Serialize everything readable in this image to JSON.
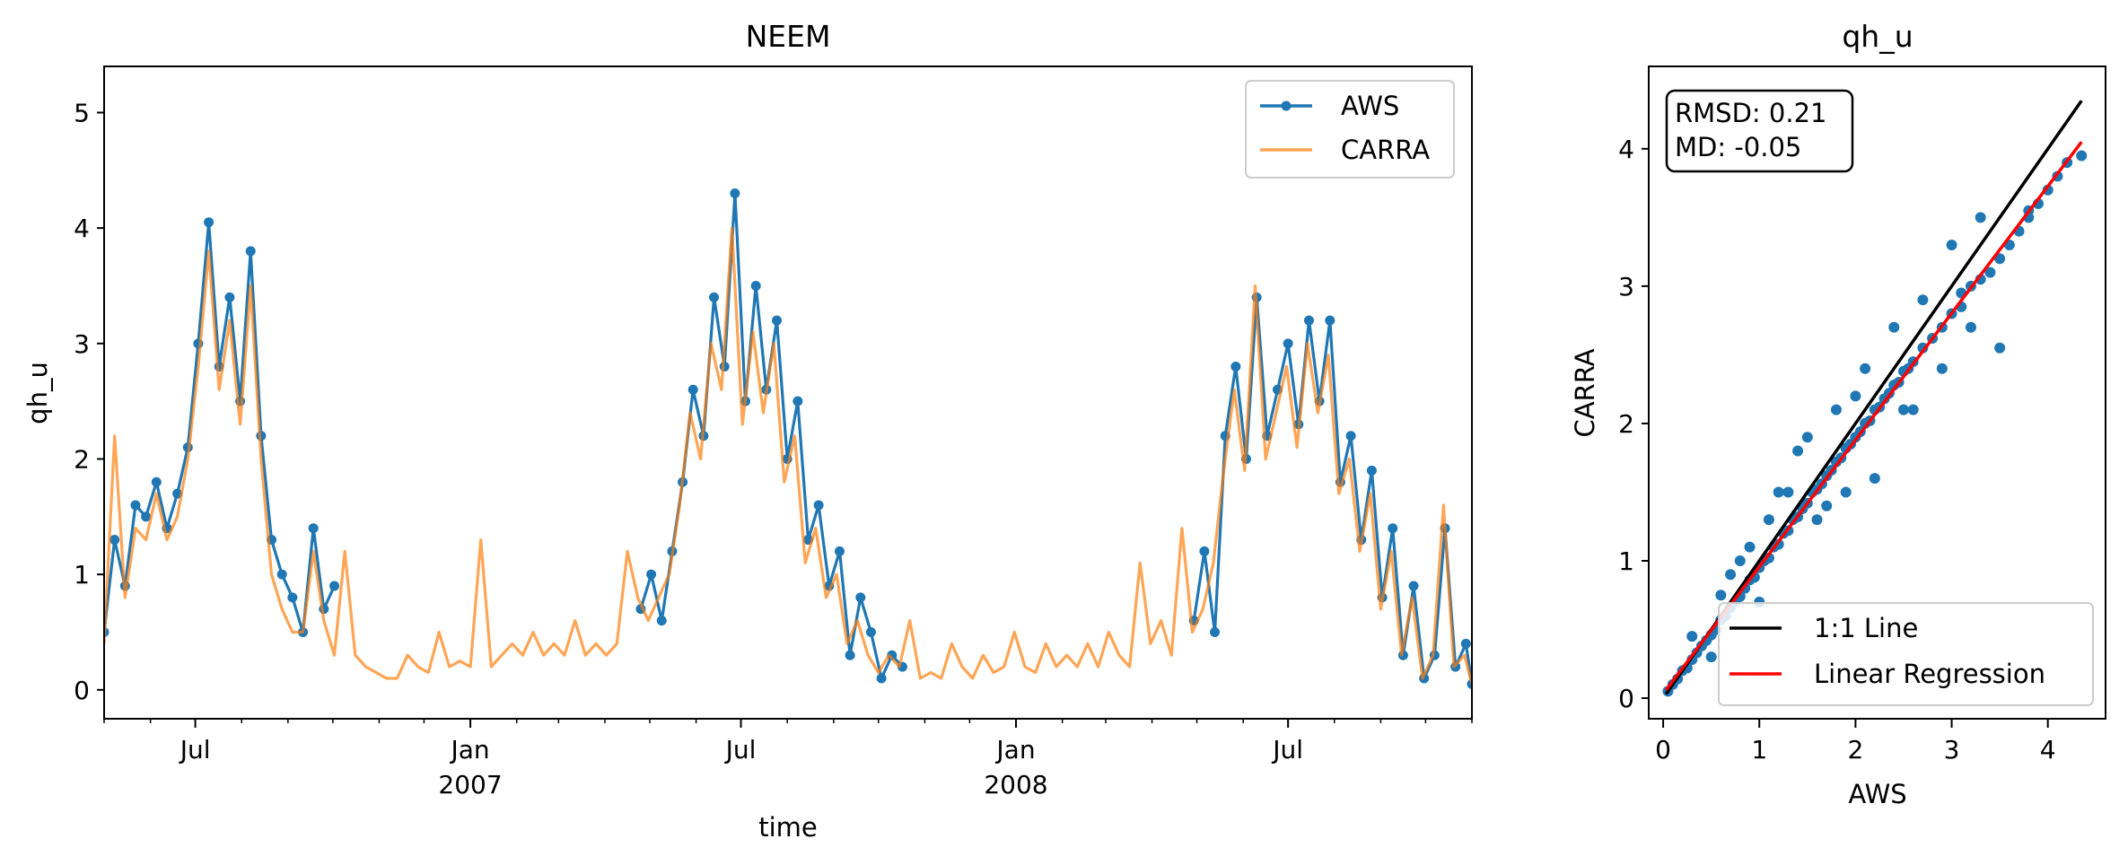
{
  "chart_data": [
    {
      "type": "line",
      "title": "NEEM",
      "xlabel": "time",
      "ylabel": "qh_u",
      "ylim": [
        -0.25,
        5.4
      ],
      "yticks": [
        "0",
        "1",
        "2",
        "3",
        "4",
        "5"
      ],
      "xlim": [
        "2006-05-01",
        "2008-11-01"
      ],
      "xticks": [
        {
          "date": "2006-07-01",
          "label": "Jul",
          "sublabel": ""
        },
        {
          "date": "2007-01-01",
          "label": "Jan",
          "sublabel": "2007"
        },
        {
          "date": "2007-07-01",
          "label": "Jul",
          "sublabel": ""
        },
        {
          "date": "2008-01-01",
          "label": "Jan",
          "sublabel": "2008"
        },
        {
          "date": "2008-07-01",
          "label": "Jul",
          "sublabel": ""
        }
      ],
      "legend": {
        "placement": "upper-right",
        "entries": [
          "AWS",
          "CARRA"
        ]
      },
      "series": [
        {
          "name": "AWS",
          "color": "#1f77b4",
          "marker": "dot",
          "segments": [
            {
              "x": [
                "2006-05-01",
                "2006-05-08",
                "2006-05-15",
                "2006-05-22",
                "2006-05-29",
                "2006-06-05",
                "2006-06-12",
                "2006-06-19",
                "2006-06-26",
                "2006-07-03",
                "2006-07-10",
                "2006-07-17",
                "2006-07-24",
                "2006-07-31",
                "2006-08-07",
                "2006-08-14",
                "2006-08-21",
                "2006-08-28",
                "2006-09-04",
                "2006-09-11",
                "2006-09-18",
                "2006-09-25",
                "2006-10-02"
              ],
              "y": [
                0.5,
                1.3,
                0.9,
                1.6,
                1.5,
                1.8,
                1.4,
                1.7,
                2.1,
                3.0,
                4.05,
                2.8,
                3.4,
                2.5,
                3.8,
                2.2,
                1.3,
                1.0,
                0.8,
                0.5,
                1.4,
                0.7,
                0.9
              ]
            },
            {
              "x": [
                "2007-04-25",
                "2007-05-02",
                "2007-05-09",
                "2007-05-16",
                "2007-05-23",
                "2007-05-30",
                "2007-06-06",
                "2007-06-13",
                "2007-06-20",
                "2007-06-27",
                "2007-07-04",
                "2007-07-11",
                "2007-07-18",
                "2007-07-25",
                "2007-08-01",
                "2007-08-08",
                "2007-08-15",
                "2007-08-22",
                "2007-08-29",
                "2007-09-05",
                "2007-09-12",
                "2007-09-19",
                "2007-09-26",
                "2007-10-03",
                "2007-10-10",
                "2007-10-17"
              ],
              "y": [
                0.7,
                1.0,
                0.6,
                1.2,
                1.8,
                2.6,
                2.2,
                3.4,
                2.8,
                4.3,
                2.5,
                3.5,
                2.6,
                3.2,
                2.0,
                2.5,
                1.3,
                1.6,
                0.9,
                1.2,
                0.3,
                0.8,
                0.5,
                0.1,
                0.3,
                0.2
              ]
            },
            {
              "x": [
                "2008-04-29",
                "2008-05-06",
                "2008-05-13",
                "2008-05-20",
                "2008-05-27",
                "2008-06-03",
                "2008-06-10",
                "2008-06-17",
                "2008-06-24",
                "2008-07-01",
                "2008-07-08",
                "2008-07-15",
                "2008-07-22",
                "2008-07-29",
                "2008-08-05",
                "2008-08-12",
                "2008-08-19",
                "2008-08-26",
                "2008-09-02",
                "2008-09-09",
                "2008-09-16",
                "2008-09-23",
                "2008-09-30",
                "2008-10-07",
                "2008-10-14",
                "2008-10-21",
                "2008-10-28",
                "2008-11-01"
              ],
              "y": [
                0.6,
                1.2,
                0.5,
                2.2,
                2.8,
                2.0,
                3.4,
                2.2,
                2.6,
                3.0,
                2.3,
                3.2,
                2.5,
                3.2,
                1.8,
                2.2,
                1.3,
                1.9,
                0.8,
                1.4,
                0.3,
                0.9,
                0.1,
                0.3,
                1.4,
                0.2,
                0.4,
                0.05
              ]
            }
          ]
        },
        {
          "name": "CARRA",
          "color": "#ff7f0e",
          "alpha": 0.7,
          "x": [
            "2006-05-01",
            "2006-05-08",
            "2006-05-15",
            "2006-05-22",
            "2006-05-29",
            "2006-06-05",
            "2006-06-12",
            "2006-06-19",
            "2006-06-26",
            "2006-07-03",
            "2006-07-10",
            "2006-07-17",
            "2006-07-24",
            "2006-07-31",
            "2006-08-07",
            "2006-08-14",
            "2006-08-21",
            "2006-08-28",
            "2006-09-04",
            "2006-09-11",
            "2006-09-18",
            "2006-09-25",
            "2006-10-02",
            "2006-10-09",
            "2006-10-16",
            "2006-10-23",
            "2006-10-30",
            "2006-11-06",
            "2006-11-13",
            "2006-11-20",
            "2006-11-27",
            "2006-12-04",
            "2006-12-11",
            "2006-12-18",
            "2006-12-25",
            "2007-01-01",
            "2007-01-08",
            "2007-01-15",
            "2007-01-22",
            "2007-01-29",
            "2007-02-05",
            "2007-02-12",
            "2007-02-19",
            "2007-02-26",
            "2007-03-05",
            "2007-03-12",
            "2007-03-19",
            "2007-03-26",
            "2007-04-02",
            "2007-04-09",
            "2007-04-16",
            "2007-04-23",
            "2007-04-30",
            "2007-05-07",
            "2007-05-14",
            "2007-05-21",
            "2007-05-28",
            "2007-06-04",
            "2007-06-11",
            "2007-06-18",
            "2007-06-25",
            "2007-07-02",
            "2007-07-09",
            "2007-07-16",
            "2007-07-23",
            "2007-07-30",
            "2007-08-06",
            "2007-08-13",
            "2007-08-20",
            "2007-08-27",
            "2007-09-03",
            "2007-09-10",
            "2007-09-17",
            "2007-09-24",
            "2007-10-01",
            "2007-10-08",
            "2007-10-15",
            "2007-10-22",
            "2007-10-29",
            "2007-11-05",
            "2007-11-12",
            "2007-11-19",
            "2007-11-26",
            "2007-12-03",
            "2007-12-10",
            "2007-12-17",
            "2007-12-24",
            "2007-12-31",
            "2008-01-07",
            "2008-01-14",
            "2008-01-21",
            "2008-01-28",
            "2008-02-04",
            "2008-02-11",
            "2008-02-18",
            "2008-02-25",
            "2008-03-03",
            "2008-03-10",
            "2008-03-17",
            "2008-03-24",
            "2008-03-31",
            "2008-04-07",
            "2008-04-14",
            "2008-04-21",
            "2008-04-28",
            "2008-05-05",
            "2008-05-12",
            "2008-05-19",
            "2008-05-26",
            "2008-06-02",
            "2008-06-09",
            "2008-06-16",
            "2008-06-23",
            "2008-06-30",
            "2008-07-07",
            "2008-07-14",
            "2008-07-21",
            "2008-07-28",
            "2008-08-04",
            "2008-08-11",
            "2008-08-18",
            "2008-08-25",
            "2008-09-01",
            "2008-09-08",
            "2008-09-15",
            "2008-09-22",
            "2008-09-29",
            "2008-10-06",
            "2008-10-13",
            "2008-10-20",
            "2008-10-27",
            "2008-11-01"
          ],
          "y": [
            0.4,
            2.2,
            0.8,
            1.4,
            1.3,
            1.7,
            1.3,
            1.5,
            2.0,
            2.8,
            3.8,
            2.6,
            3.2,
            2.3,
            3.5,
            2.0,
            1.0,
            0.7,
            0.5,
            0.5,
            1.2,
            0.6,
            0.3,
            1.2,
            0.3,
            0.2,
            0.15,
            0.1,
            0.1,
            0.3,
            0.2,
            0.15,
            0.5,
            0.2,
            0.25,
            0.2,
            1.3,
            0.2,
            0.3,
            0.4,
            0.3,
            0.5,
            0.3,
            0.4,
            0.3,
            0.6,
            0.3,
            0.4,
            0.3,
            0.4,
            1.2,
            0.8,
            0.6,
            0.8,
            1.0,
            1.6,
            2.4,
            2.0,
            3.0,
            2.6,
            4.0,
            2.3,
            3.1,
            2.4,
            3.0,
            1.8,
            2.2,
            1.1,
            1.4,
            0.8,
            1.0,
            0.4,
            0.6,
            0.3,
            0.15,
            0.3,
            0.2,
            0.6,
            0.1,
            0.15,
            0.1,
            0.4,
            0.2,
            0.1,
            0.3,
            0.15,
            0.2,
            0.5,
            0.2,
            0.15,
            0.4,
            0.2,
            0.3,
            0.2,
            0.4,
            0.2,
            0.5,
            0.3,
            0.2,
            1.1,
            0.4,
            0.6,
            0.3,
            1.4,
            0.5,
            0.7,
            1.1,
            1.9,
            2.6,
            1.9,
            3.5,
            2.0,
            2.4,
            2.8,
            2.1,
            3.0,
            2.4,
            2.9,
            1.7,
            2.0,
            1.2,
            1.7,
            0.7,
            1.2,
            0.3,
            0.8,
            0.1,
            0.3,
            1.6,
            0.2,
            0.3,
            0.05
          ]
        }
      ]
    },
    {
      "type": "scatter",
      "title": "qh_u",
      "xlabel": "AWS",
      "ylabel": "CARRA",
      "xlim": [
        -0.15,
        4.6
      ],
      "ylim": [
        -0.15,
        4.6
      ],
      "xticks": [
        "0",
        "1",
        "2",
        "3",
        "4"
      ],
      "yticks": [
        "0",
        "1",
        "2",
        "3",
        "4"
      ],
      "stats": {
        "rmsd_text": "RMSD: 0.21",
        "md_text": "MD: -0.05"
      },
      "legend": {
        "placement": "lower-right",
        "entries": [
          "1:1 Line",
          "Linear Regression"
        ]
      },
      "one_to_one": {
        "x": [
          0.03,
          4.35
        ],
        "y": [
          0.03,
          4.35
        ],
        "color": "#000000"
      },
      "regression": {
        "x": [
          0.03,
          4.35
        ],
        "y": [
          0.06,
          4.05
        ],
        "color": "#ff0000"
      },
      "points": {
        "color": "#1f77b4",
        "x": [
          0.05,
          0.1,
          0.15,
          0.2,
          0.25,
          0.3,
          0.35,
          0.4,
          0.45,
          0.5,
          0.55,
          0.6,
          0.65,
          0.7,
          0.75,
          0.8,
          0.85,
          0.9,
          0.95,
          1.0,
          1.05,
          1.1,
          1.15,
          1.2,
          1.25,
          1.3,
          1.35,
          1.4,
          1.45,
          1.5,
          1.55,
          1.6,
          1.65,
          1.7,
          1.75,
          1.8,
          1.85,
          1.9,
          1.95,
          2.0,
          2.05,
          2.1,
          2.15,
          2.2,
          2.25,
          2.3,
          2.35,
          2.4,
          2.45,
          2.5,
          2.55,
          2.6,
          2.7,
          2.8,
          2.9,
          3.0,
          3.1,
          3.2,
          3.3,
          3.4,
          3.5,
          3.6,
          3.7,
          3.8,
          3.9,
          4.0,
          4.1,
          4.2,
          4.35,
          0.3,
          0.6,
          0.9,
          1.2,
          1.5,
          1.8,
          2.1,
          2.4,
          2.7,
          3.0,
          3.3,
          3.5,
          2.2,
          1.6,
          1.0,
          0.5,
          2.9,
          3.2,
          3.8,
          1.3,
          0.8,
          2.6,
          3.1,
          1.9,
          1.1,
          1.4,
          2.0,
          2.5,
          1.7,
          0.7
        ],
        "y": [
          0.05,
          0.1,
          0.14,
          0.2,
          0.22,
          0.28,
          0.33,
          0.38,
          0.42,
          0.46,
          0.5,
          0.57,
          0.6,
          0.66,
          0.7,
          0.74,
          0.8,
          0.86,
          0.88,
          0.95,
          1.0,
          1.02,
          1.1,
          1.12,
          1.2,
          1.22,
          1.3,
          1.32,
          1.38,
          1.42,
          1.5,
          1.52,
          1.56,
          1.62,
          1.66,
          1.72,
          1.75,
          1.82,
          1.85,
          1.9,
          1.94,
          2.0,
          2.02,
          2.1,
          2.12,
          2.18,
          2.22,
          2.28,
          2.3,
          2.38,
          2.4,
          2.45,
          2.55,
          2.62,
          2.7,
          2.8,
          2.85,
          3.0,
          3.05,
          3.1,
          3.2,
          3.3,
          3.4,
          3.5,
          3.6,
          3.7,
          3.8,
          3.9,
          3.95,
          0.45,
          0.75,
          1.1,
          1.5,
          1.9,
          2.1,
          2.4,
          2.7,
          2.9,
          3.3,
          3.5,
          2.55,
          1.6,
          1.3,
          0.7,
          0.3,
          2.4,
          2.7,
          3.55,
          1.5,
          1.0,
          2.1,
          2.95,
          1.5,
          1.3,
          1.8,
          2.2,
          2.1,
          1.4,
          0.9
        ]
      }
    }
  ]
}
